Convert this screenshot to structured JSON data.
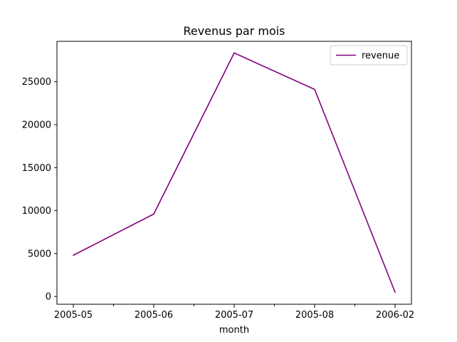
{
  "chart_data": {
    "type": "line",
    "title": "Revenus par mois",
    "xlabel": "month",
    "ylabel": "",
    "categories": [
      "2005-05",
      "2005-06",
      "2005-07",
      "2005-08",
      "2006-02"
    ],
    "series": [
      {
        "name": "revenue",
        "color": "#800080",
        "values": [
          4800,
          9600,
          28350,
          24100,
          500
        ]
      }
    ],
    "yticks": [
      0,
      5000,
      10000,
      15000,
      20000,
      25000
    ],
    "ytick_labels": [
      "0",
      "5000",
      "10000",
      "15000",
      "20000",
      "25000"
    ],
    "ylim": [
      -900,
      29700
    ],
    "grid": false,
    "legend": "top-right"
  }
}
